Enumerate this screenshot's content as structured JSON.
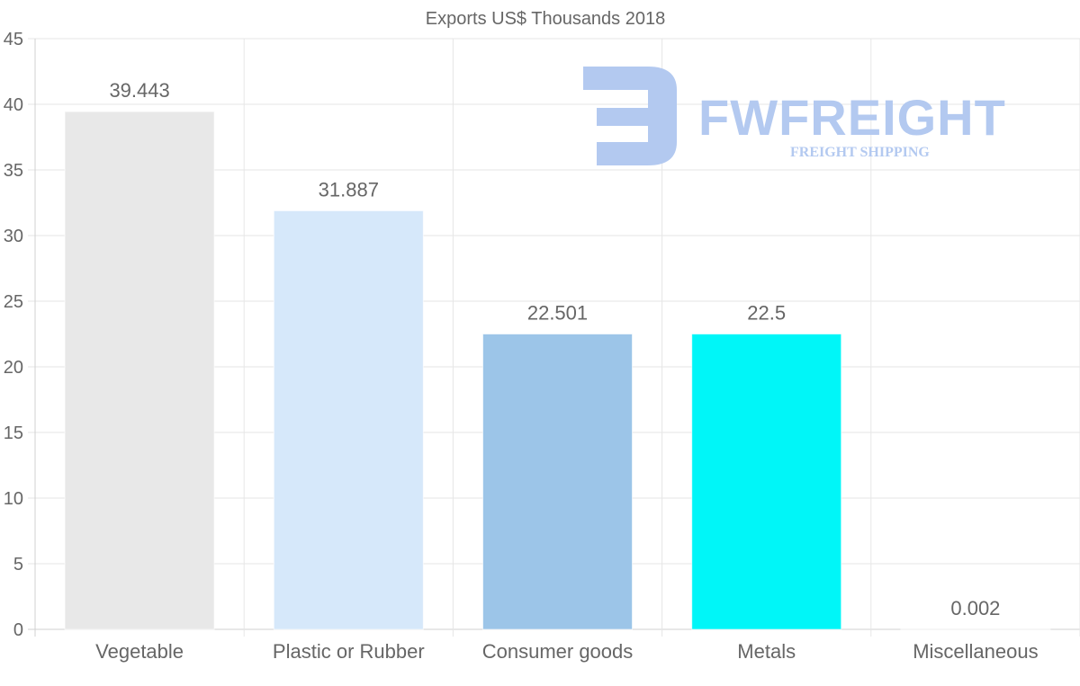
{
  "chart_data": {
    "type": "bar",
    "title": "Exports US$ Thousands 2018",
    "categories": [
      "Vegetable",
      "Plastic or Rubber",
      "Consumer goods",
      "Metals",
      "Miscellaneous"
    ],
    "values": [
      39.443,
      31.887,
      22.501,
      22.5,
      0.002
    ],
    "data_labels": [
      "39.443",
      "31.887",
      "22.501",
      "22.5",
      "0.002"
    ],
    "colors": [
      "#e8e8e8",
      "#d6e8fa",
      "#9cc5e8",
      "#00f6f8",
      "#e8e8e8"
    ],
    "ylim": [
      0,
      45
    ],
    "yticks": [
      0,
      5,
      10,
      15,
      20,
      25,
      30,
      35,
      40,
      45
    ],
    "xlabel": "",
    "ylabel": "",
    "grid": true,
    "legend": "none"
  },
  "watermark": {
    "brand": "FWFREIGHT",
    "tagline": "FREIGHT SHIPPING",
    "color": "#b3c9f0"
  }
}
